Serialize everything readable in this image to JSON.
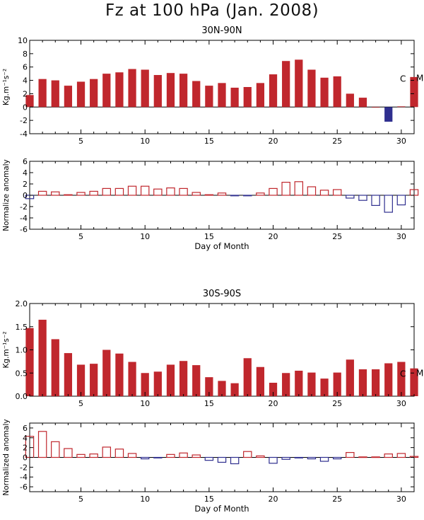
{
  "figure": {
    "title": "Fz at 100 hPa (Jan. 2008)",
    "colors": {
      "positive": "#c0272d",
      "negative": "#2f2f8f",
      "axis": "#000000"
    }
  },
  "chart_data": [
    {
      "id": "nh-fz",
      "type": "bar",
      "title": "30N-90N",
      "xlabel": "",
      "ylabel": "Kg.m⁻¹s⁻²",
      "xlim": [
        1,
        31
      ],
      "ylim": [
        -4,
        10
      ],
      "yticks": [
        -4,
        -2,
        0,
        2,
        4,
        6,
        8,
        10
      ],
      "xticks": [
        5,
        10,
        15,
        20,
        25,
        30
      ],
      "bar_style": "filled",
      "annotations": [
        "C",
        "M"
      ],
      "x": [
        1,
        2,
        3,
        4,
        5,
        6,
        7,
        8,
        9,
        10,
        11,
        12,
        13,
        14,
        15,
        16,
        17,
        18,
        19,
        20,
        21,
        22,
        23,
        24,
        25,
        26,
        27,
        28,
        29,
        30,
        31
      ],
      "values": [
        1.8,
        4.2,
        4.0,
        3.2,
        3.8,
        4.2,
        5.0,
        5.2,
        5.7,
        5.6,
        4.8,
        5.1,
        5.0,
        3.9,
        3.2,
        3.6,
        2.9,
        3.0,
        3.6,
        4.9,
        6.9,
        7.1,
        5.6,
        4.4,
        4.6,
        2.0,
        1.4,
        0.0,
        -2.2,
        0.1,
        4.5
      ]
    },
    {
      "id": "nh-anomaly",
      "type": "bar",
      "title": "",
      "xlabel": "Day of Month",
      "ylabel": "Normalize anomaly",
      "xlim": [
        1,
        31
      ],
      "ylim": [
        -6,
        6
      ],
      "yticks": [
        -6,
        -4,
        -2,
        0,
        2,
        4,
        6
      ],
      "xticks": [
        5,
        10,
        15,
        20,
        25,
        30
      ],
      "bar_style": "outline",
      "annotations": [],
      "x": [
        1,
        2,
        3,
        4,
        5,
        6,
        7,
        8,
        9,
        10,
        11,
        12,
        13,
        14,
        15,
        16,
        17,
        18,
        19,
        20,
        21,
        22,
        23,
        24,
        25,
        26,
        27,
        28,
        29,
        30,
        31
      ],
      "values": [
        -0.6,
        0.7,
        0.6,
        0.1,
        0.5,
        0.7,
        1.2,
        1.2,
        1.6,
        1.6,
        1.1,
        1.3,
        1.2,
        0.5,
        0.1,
        0.4,
        -0.1,
        -0.1,
        0.4,
        1.2,
        2.3,
        2.4,
        1.5,
        0.9,
        1.0,
        -0.5,
        -0.9,
        -1.8,
        -3.0,
        -1.7,
        1.0
      ]
    },
    {
      "id": "sh-fz",
      "type": "bar",
      "title": "30S-90S",
      "xlabel": "",
      "ylabel": "Kg.m⁻¹s⁻²",
      "xlim": [
        1,
        31
      ],
      "ylim": [
        0,
        2.0
      ],
      "yticks": [
        0.0,
        0.5,
        1.0,
        1.5,
        2.0
      ],
      "ytick_labels": [
        "0.0",
        "0.5",
        "1.0",
        "1.5",
        "2.0"
      ],
      "xticks": [
        5,
        10,
        15,
        20,
        25,
        30
      ],
      "bar_style": "filled",
      "annotations": [
        "C",
        "M"
      ],
      "x": [
        1,
        2,
        3,
        4,
        5,
        6,
        7,
        8,
        9,
        10,
        11,
        12,
        13,
        14,
        15,
        16,
        17,
        18,
        19,
        20,
        21,
        22,
        23,
        24,
        25,
        26,
        27,
        28,
        29,
        30,
        31
      ],
      "values": [
        1.47,
        1.65,
        1.23,
        0.93,
        0.68,
        0.7,
        1.0,
        0.92,
        0.74,
        0.5,
        0.53,
        0.68,
        0.76,
        0.67,
        0.41,
        0.33,
        0.28,
        0.82,
        0.63,
        0.29,
        0.5,
        0.55,
        0.51,
        0.38,
        0.51,
        0.79,
        0.58,
        0.58,
        0.71,
        0.74,
        0.6
      ]
    },
    {
      "id": "sh-anomaly",
      "type": "bar",
      "title": "",
      "xlabel": "Day of Month",
      "ylabel": "Normalized anomaly",
      "xlim": [
        1,
        31
      ],
      "ylim": [
        -7,
        7
      ],
      "yticks": [
        -6,
        -4,
        -2,
        0,
        2,
        4,
        6
      ],
      "xticks": [
        5,
        10,
        15,
        20,
        25,
        30
      ],
      "bar_style": "outline",
      "annotations": [],
      "x": [
        1,
        2,
        3,
        4,
        5,
        6,
        7,
        8,
        9,
        10,
        11,
        12,
        13,
        14,
        15,
        16,
        17,
        18,
        19,
        20,
        21,
        22,
        23,
        24,
        25,
        26,
        27,
        28,
        29,
        30,
        31
      ],
      "values": [
        4.3,
        5.3,
        3.2,
        1.8,
        0.6,
        0.7,
        2.1,
        1.7,
        0.8,
        -0.3,
        -0.1,
        0.6,
        0.9,
        0.5,
        -0.6,
        -1.0,
        -1.3,
        1.2,
        0.3,
        -1.2,
        -0.4,
        -0.1,
        -0.3,
        -0.8,
        -0.3,
        1.0,
        0.1,
        0.1,
        0.7,
        0.8,
        0.2
      ]
    }
  ]
}
